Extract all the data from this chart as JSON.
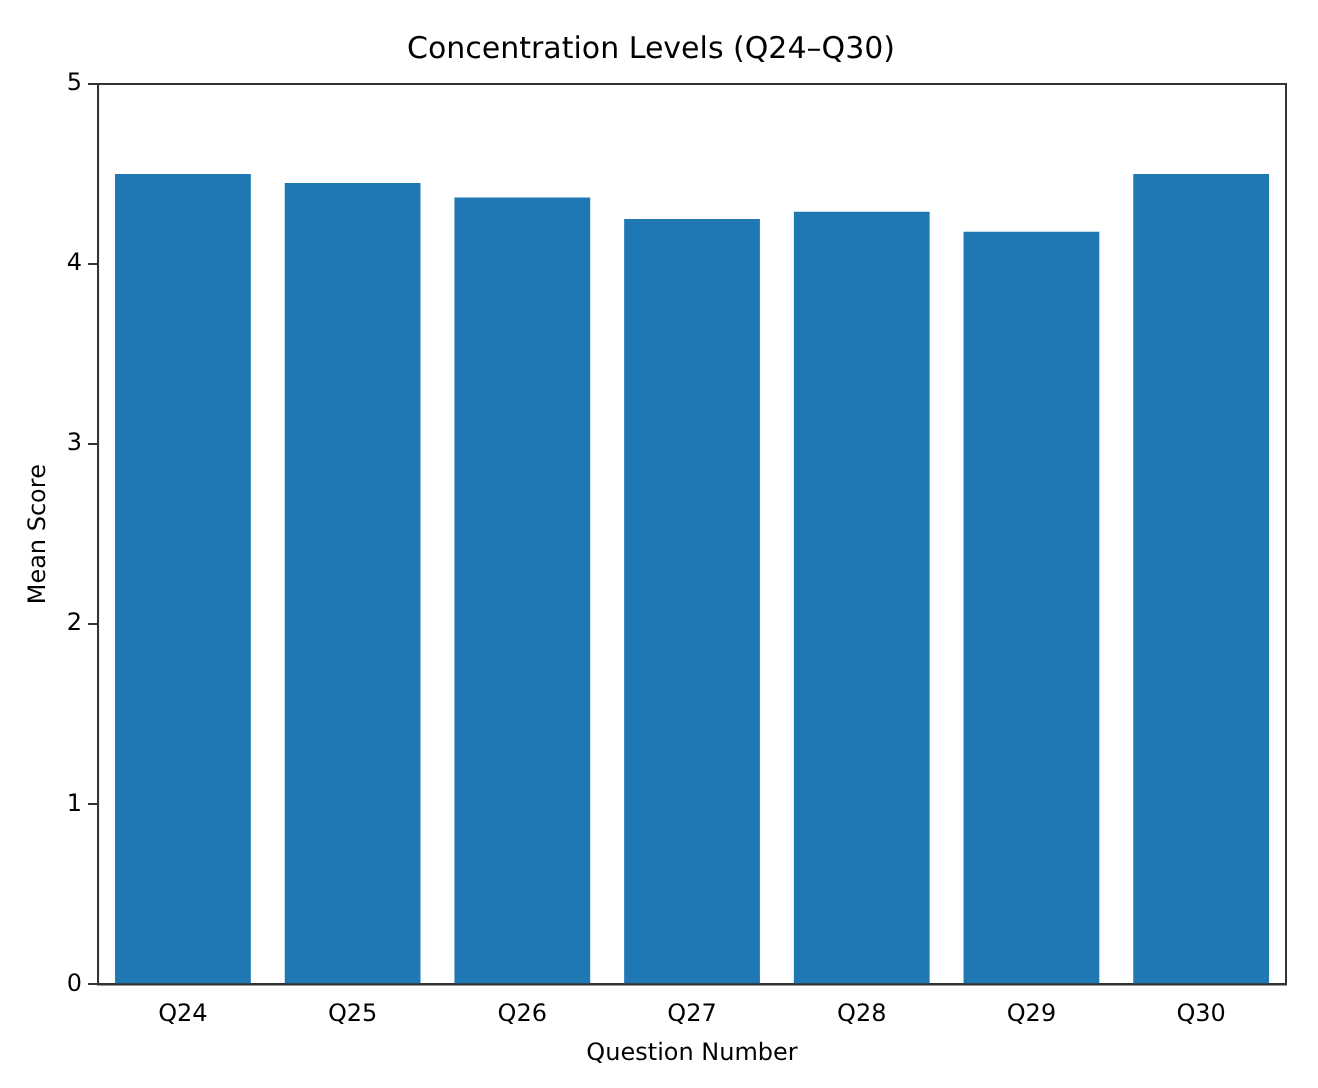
{
  "chart_data": {
    "type": "bar",
    "title": "Concentration Levels (Q24–Q30)",
    "xlabel": "Question Number",
    "ylabel": "Mean Score",
    "categories": [
      "Q24",
      "Q25",
      "Q26",
      "Q27",
      "Q28",
      "Q29",
      "Q30"
    ],
    "values": [
      4.5,
      4.45,
      4.37,
      4.25,
      4.29,
      4.18,
      4.5
    ],
    "color": "#1f77b4",
    "ylim": [
      0,
      5
    ],
    "yticks": [
      0,
      1,
      2,
      3,
      4,
      5
    ],
    "grid": false,
    "legend": false
  }
}
